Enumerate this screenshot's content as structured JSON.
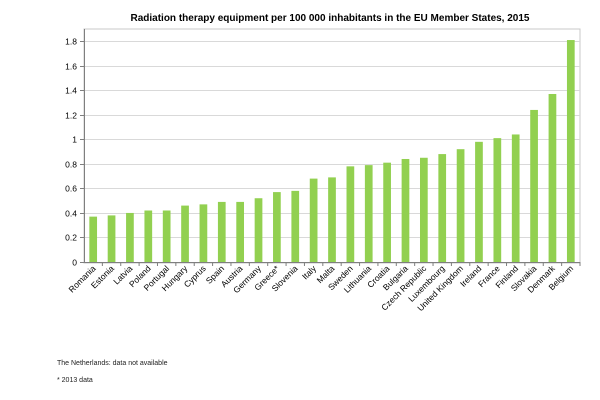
{
  "chart_data": {
    "type": "bar",
    "title": "Radiation therapy equipment per 100 000 inhabitants in the EU Member States, 2015",
    "xlabel": "",
    "ylabel": "",
    "ylim": [
      0,
      1.9
    ],
    "yticks": [
      "0",
      "0.2",
      "0.4",
      "0.6",
      "0.8",
      "1",
      "1.2",
      "1.4",
      "1.6",
      "1.8"
    ],
    "grid": true,
    "bar_color": "#92d050",
    "categories": [
      "Romania",
      "Estonia",
      "Latvia",
      "Poland",
      "Portugal",
      "Hungary",
      "Cyprus",
      "Spain",
      "Austria",
      "Germany",
      "Greece*",
      "Slovenia",
      "Italy",
      "Malta",
      "Sweden",
      "Lithuania",
      "Croatia",
      "Bulgaria",
      "Czech Republic",
      "Luxembourg",
      "United Kingdom",
      "Ireland",
      "France",
      "Finland",
      "Slovakia",
      "Denmark",
      "Belgium"
    ],
    "values": [
      0.37,
      0.38,
      0.4,
      0.42,
      0.42,
      0.46,
      0.47,
      0.49,
      0.49,
      0.52,
      0.57,
      0.58,
      0.68,
      0.69,
      0.78,
      0.79,
      0.81,
      0.84,
      0.85,
      0.88,
      0.92,
      0.98,
      1.01,
      1.04,
      1.24,
      1.37,
      1.81
    ]
  },
  "notes": {
    "line1": "The Netherlands: data not available",
    "line2": "* 2013 data"
  }
}
